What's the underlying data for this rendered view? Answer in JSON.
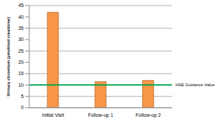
{
  "chart_data": {
    "type": "bar",
    "categories": [
      "Initial Visit",
      "Follow-up 1",
      "Follow-up 2"
    ],
    "values": [
      42,
      11.5,
      12
    ],
    "color": "#f79646",
    "ylim": [
      0,
      45
    ],
    "yticks": [
      0,
      5,
      10,
      15,
      20,
      25,
      30,
      35,
      40,
      45
    ],
    "grid": true,
    "y_label": "Urinary chromium (µmol/mol creatinine)",
    "reference_line": {
      "value": 10,
      "label": "HSE Guidance Value",
      "color": "#00a651"
    }
  }
}
